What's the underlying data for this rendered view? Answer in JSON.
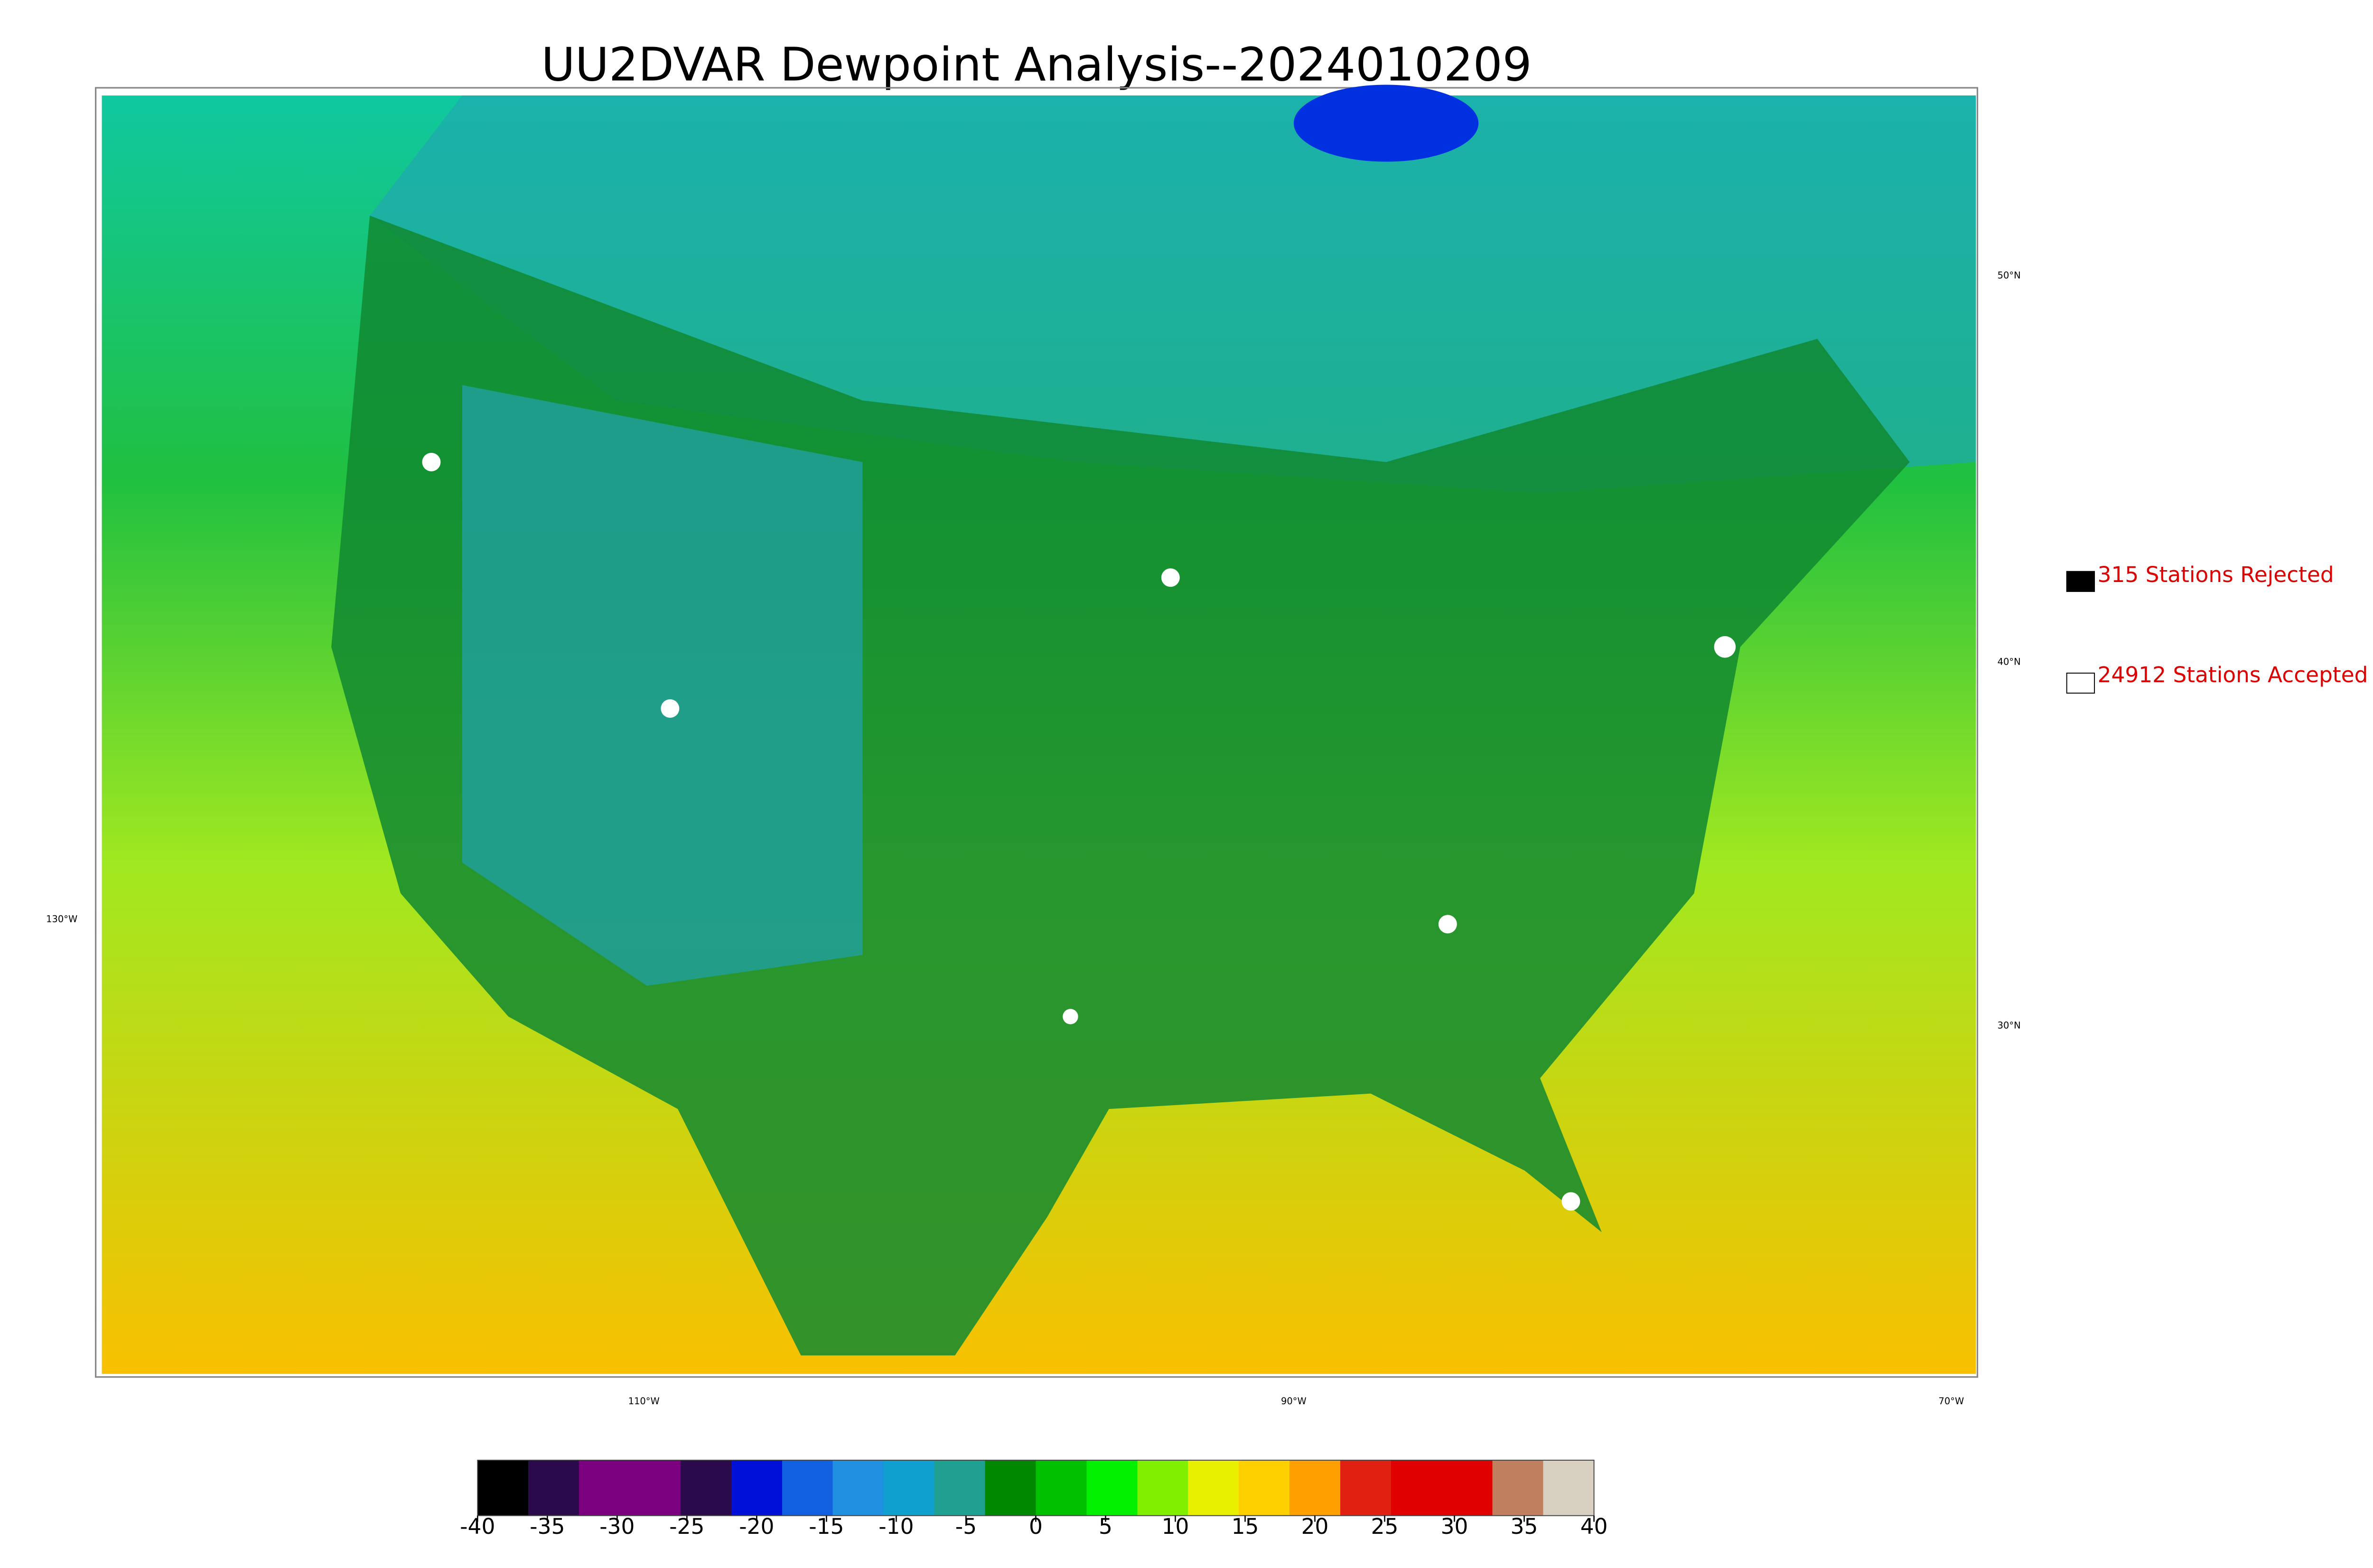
{
  "title": "UU2DVAR Dewpoint Analysis--2024010209",
  "graticule": {
    "lat_labels": [
      "50°N",
      "40°N",
      "30°N"
    ],
    "lon_labels": [
      "130°W",
      "110°W",
      "90°W",
      "70°W"
    ]
  },
  "legend": {
    "rejected": "315 Stations Rejected",
    "accepted": "24912 Stations Accepted",
    "rejected_color": "#000000",
    "accepted_color": "#ffffff",
    "text_color": "#dd0000"
  },
  "colorbar": {
    "lim": [
      -40,
      40
    ],
    "ticks": [
      -40,
      -35,
      -30,
      -25,
      -20,
      -15,
      -10,
      -5,
      0,
      5,
      10,
      15,
      20,
      25,
      30,
      35,
      40
    ],
    "colors": [
      "#000000",
      "#2a0a4a",
      "#7b0080",
      "#7b0080",
      "#2a0a4a",
      "#0010d8",
      "#1060e0",
      "#2090e0",
      "#10a0d0",
      "#20a090",
      "#008800",
      "#00c000",
      "#00f000",
      "#80f000",
      "#e8f000",
      "#ffd000",
      "#ffa000",
      "#e02010",
      "#e00000",
      "#e00000",
      "#c08060",
      "#d8d0c0"
    ]
  }
}
